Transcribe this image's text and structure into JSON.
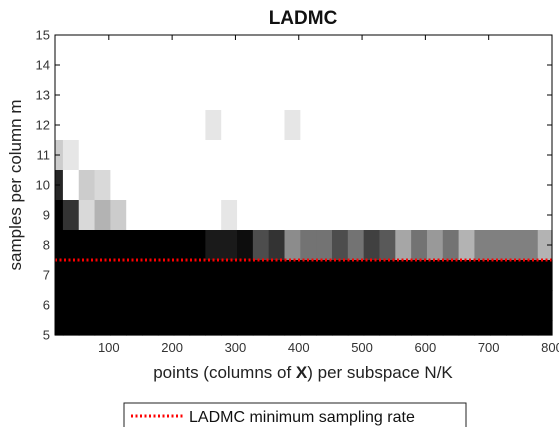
{
  "chart_data": {
    "type": "heatmap",
    "title": "LADMC",
    "xlabel_parts": [
      "points (columns of ",
      "X",
      ") per subspace N/K"
    ],
    "ylabel": "samples per column m",
    "xlim": [
      15,
      800
    ],
    "ylim": [
      5,
      15
    ],
    "x_ticks": [
      100,
      200,
      300,
      400,
      500,
      600,
      700,
      800
    ],
    "y_ticks": [
      5,
      6,
      7,
      8,
      9,
      10,
      11,
      12,
      13,
      14,
      15
    ],
    "colormap": "gray: 0 = black, 1 = white",
    "x_centers": [
      15,
      40,
      65,
      90,
      115,
      140,
      165,
      190,
      215,
      240,
      265,
      290,
      315,
      340,
      365,
      390,
      415,
      440,
      465,
      490,
      515,
      540,
      565,
      590,
      615,
      640,
      665,
      690,
      715,
      740,
      765,
      790
    ],
    "rows": [
      {
        "m": 12,
        "values": [
          1,
          1,
          1,
          1,
          1,
          1,
          1,
          1,
          1,
          1,
          0.9,
          1,
          1,
          1,
          1,
          0.9,
          1,
          1,
          1,
          1,
          1,
          1,
          1,
          1,
          1,
          1,
          1,
          1,
          1,
          1,
          1,
          1
        ]
      },
      {
        "m": 11,
        "values": [
          0.8,
          0.9,
          1,
          1,
          1,
          1,
          1,
          1,
          1,
          1,
          1,
          1,
          1,
          1,
          1,
          1,
          1,
          1,
          1,
          1,
          1,
          1,
          1,
          1,
          1,
          1,
          1,
          1,
          1,
          1,
          1,
          1
        ]
      },
      {
        "m": 10,
        "values": [
          0.15,
          1,
          0.8,
          0.85,
          1,
          1,
          1,
          1,
          1,
          1,
          1,
          1,
          1,
          1,
          1,
          1,
          1,
          1,
          1,
          1,
          1,
          1,
          1,
          1,
          1,
          1,
          1,
          1,
          1,
          1,
          1,
          1
        ]
      },
      {
        "m": 9,
        "values": [
          0,
          0.2,
          0.85,
          0.7,
          0.8,
          1,
          1,
          1,
          1,
          1,
          1,
          0.9,
          1,
          1,
          1,
          1,
          1,
          1,
          1,
          1,
          1,
          1,
          1,
          1,
          1,
          1,
          1,
          1,
          1,
          1,
          1,
          1
        ]
      },
      {
        "m": 8,
        "values": [
          0,
          0,
          0,
          0,
          0,
          0,
          0,
          0,
          0,
          0,
          0.1,
          0.1,
          0.05,
          0.3,
          0.2,
          0.55,
          0.45,
          0.45,
          0.3,
          0.45,
          0.25,
          0.35,
          0.65,
          0.45,
          0.6,
          0.45,
          0.7,
          0.5,
          0.5,
          0.5,
          0.5,
          0.7
        ]
      },
      {
        "m": 7,
        "values": [
          0,
          0,
          0,
          0,
          0,
          0,
          0,
          0,
          0,
          0,
          0,
          0,
          0,
          0,
          0,
          0,
          0,
          0,
          0,
          0,
          0,
          0,
          0,
          0,
          0,
          0,
          0,
          0,
          0,
          0,
          0,
          0
        ]
      },
      {
        "m": 6,
        "values": [
          0,
          0,
          0,
          0,
          0,
          0,
          0,
          0,
          0,
          0,
          0,
          0,
          0,
          0,
          0,
          0,
          0,
          0,
          0,
          0,
          0,
          0,
          0,
          0,
          0,
          0,
          0,
          0,
          0,
          0,
          0,
          0
        ]
      },
      {
        "m": 5,
        "values": [
          0,
          0,
          0,
          0,
          0,
          0,
          0,
          0,
          0,
          0,
          0,
          0,
          0,
          0,
          0,
          0,
          0,
          0,
          0,
          0,
          0,
          0,
          0,
          0,
          0,
          0,
          0,
          0,
          0,
          0,
          0,
          0
        ]
      }
    ],
    "minimum_rate_line": {
      "m": 7.5,
      "color": "#ff0000",
      "style": "dotted"
    },
    "legend": {
      "label": "LADMC minimum sampling rate",
      "placement": "bottom"
    }
  }
}
